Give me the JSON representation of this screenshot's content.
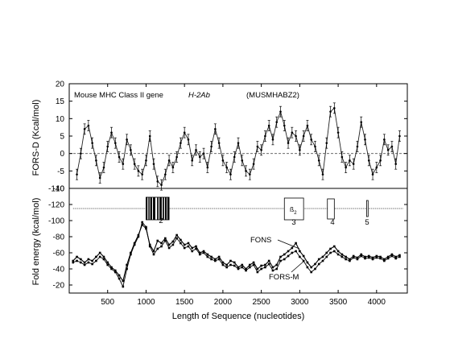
{
  "chart_data": [
    {
      "type": "line",
      "title": "Mouse MHC Class II gene",
      "gene": "H-2Ab",
      "accession": "(MUSMHABZ2)",
      "ylabel": "FORS-D (Kcal/mol)",
      "ylim": [
        -10,
        20
      ],
      "yticks": [
        -10,
        -5,
        0,
        5,
        10,
        15,
        20
      ],
      "xlim": [
        0,
        4400
      ],
      "reference_line": 0,
      "grid": false,
      "error_bars": true,
      "series": [
        {
          "x": [
            100,
            150,
            200,
            250,
            300,
            350,
            400,
            450,
            500,
            550,
            600,
            650,
            700,
            750,
            800,
            850,
            900,
            950,
            1000,
            1050,
            1100,
            1150,
            1200,
            1250,
            1300,
            1350,
            1400,
            1450,
            1500,
            1550,
            1600,
            1650,
            1700,
            1750,
            1800,
            1850,
            1900,
            1950,
            2000,
            2050,
            2100,
            2150,
            2200,
            2250,
            2300,
            2350,
            2400,
            2450,
            2500,
            2550,
            2600,
            2650,
            2700,
            2750,
            2800,
            2850,
            2900,
            2950,
            3000,
            3050,
            3100,
            3150,
            3200,
            3250,
            3300,
            3350,
            3400,
            3450,
            3500,
            3550,
            3600,
            3650,
            3700,
            3750,
            3800,
            3850,
            3900,
            3950,
            4000,
            4050,
            4100,
            4150,
            4200,
            4250,
            4300
          ],
          "values": [
            -6,
            0,
            7,
            8,
            3,
            -2,
            -7,
            -4,
            2,
            6,
            3,
            -1,
            -3,
            4,
            1,
            -3,
            -5,
            -6,
            -2,
            5,
            -3,
            -8,
            -9,
            -6,
            -2,
            -4,
            -1,
            3,
            6,
            4,
            -2,
            1,
            -1,
            0,
            -4,
            2,
            7,
            3,
            -2,
            -4,
            -6,
            -1,
            3,
            -2,
            -5,
            -6,
            -3,
            2,
            1,
            5,
            8,
            4,
            9,
            12,
            8,
            3,
            6,
            5,
            1,
            5,
            8,
            4,
            2,
            -2,
            -6,
            3,
            12,
            13,
            6,
            -1,
            -4,
            -2,
            -3,
            2,
            9,
            4,
            -2,
            -6,
            -4,
            -2,
            4,
            1,
            2,
            -3,
            5
          ],
          "error": [
            1.5,
            1.5,
            1.5,
            1.5,
            1.5,
            1.5,
            1.5,
            1.5,
            1.5,
            1.5,
            1.5,
            1.5,
            1.5,
            1.5,
            1.5,
            1.5,
            1.5,
            1.5,
            1.5,
            1.5,
            1.5,
            1.5,
            1.5,
            1.5,
            1.5,
            1.5,
            1.5,
            1.5,
            1.5,
            1.5,
            1.5,
            1.5,
            1.5,
            1.5,
            1.5,
            1.5,
            1.5,
            1.5,
            1.5,
            1.5,
            1.5,
            1.5,
            1.5,
            1.5,
            1.5,
            1.5,
            1.5,
            1.5,
            1.5,
            1.5,
            1.5,
            1.5,
            1.5,
            1.5,
            1.5,
            1.5,
            1.5,
            1.5,
            1.5,
            1.5,
            1.5,
            1.5,
            1.5,
            1.5,
            1.5,
            1.5,
            1.5,
            1.5,
            1.5,
            1.5,
            1.5,
            1.5,
            1.5,
            1.5,
            1.5,
            1.5,
            1.5,
            1.5,
            1.5,
            1.5,
            1.5,
            1.5,
            1.5,
            1.5,
            1.5
          ]
        }
      ]
    },
    {
      "type": "line",
      "ylabel": "Fold energy (kcal/mol)",
      "xlabel": "Length of Sequence (nucleotides)",
      "ylim": [
        -10,
        -140
      ],
      "yticks": [
        -20,
        -40,
        -60,
        -80,
        -100,
        -120,
        -140
      ],
      "xlim": [
        0,
        4400
      ],
      "xticks": [
        500,
        1000,
        1500,
        2000,
        2500,
        3000,
        3500,
        4000
      ],
      "grid": false,
      "series": [
        {
          "name": "FONS",
          "x": [
            50,
            100,
            150,
            200,
            250,
            300,
            350,
            400,
            450,
            500,
            550,
            600,
            650,
            700,
            750,
            800,
            850,
            900,
            950,
            1000,
            1050,
            1100,
            1150,
            1200,
            1250,
            1300,
            1350,
            1400,
            1450,
            1500,
            1550,
            1600,
            1650,
            1700,
            1750,
            1800,
            1850,
            1900,
            1950,
            2000,
            2050,
            2100,
            2150,
            2200,
            2250,
            2300,
            2350,
            2400,
            2450,
            2500,
            2550,
            2600,
            2650,
            2700,
            2750,
            2800,
            2850,
            2900,
            2950,
            3000,
            3050,
            3100,
            3150,
            3200,
            3250,
            3300,
            3350,
            3400,
            3450,
            3500,
            3550,
            3600,
            3650,
            3700,
            3750,
            3800,
            3850,
            3900,
            3950,
            4000,
            4050,
            4100,
            4150,
            4200,
            4250,
            4300
          ],
          "values": [
            -50,
            -55,
            -52,
            -48,
            -52,
            -50,
            -55,
            -60,
            -55,
            -48,
            -42,
            -38,
            -32,
            -25,
            -45,
            -60,
            -72,
            -82,
            -95,
            -90,
            -70,
            -62,
            -75,
            -72,
            -78,
            -70,
            -74,
            -82,
            -76,
            -70,
            -72,
            -66,
            -68,
            -60,
            -62,
            -58,
            -55,
            -52,
            -55,
            -48,
            -45,
            -50,
            -48,
            -42,
            -45,
            -40,
            -45,
            -48,
            -40,
            -44,
            -45,
            -50,
            -42,
            -45,
            -55,
            -58,
            -62,
            -66,
            -72,
            -62,
            -56,
            -48,
            -42,
            -46,
            -52,
            -55,
            -60,
            -65,
            -68,
            -62,
            -58,
            -55,
            -52,
            -56,
            -54,
            -58,
            -55,
            -56,
            -54,
            -56,
            -55,
            -52,
            -55,
            -58,
            -55,
            -57
          ]
        },
        {
          "name": "FORS-M",
          "x": [
            50,
            100,
            150,
            200,
            250,
            300,
            350,
            400,
            450,
            500,
            550,
            600,
            650,
            700,
            750,
            800,
            850,
            900,
            950,
            1000,
            1050,
            1100,
            1150,
            1200,
            1250,
            1300,
            1350,
            1400,
            1450,
            1500,
            1550,
            1600,
            1650,
            1700,
            1750,
            1800,
            1850,
            1900,
            1950,
            2000,
            2050,
            2100,
            2150,
            2200,
            2250,
            2300,
            2350,
            2400,
            2450,
            2500,
            2550,
            2600,
            2650,
            2700,
            2750,
            2800,
            2850,
            2900,
            2950,
            3000,
            3050,
            3100,
            3150,
            3200,
            3250,
            3300,
            3350,
            3400,
            3450,
            3500,
            3550,
            3600,
            3650,
            3700,
            3750,
            3800,
            3850,
            3900,
            3950,
            4000,
            4050,
            4100,
            4150,
            4200,
            4250,
            4300
          ],
          "values": [
            -48,
            -50,
            -48,
            -45,
            -48,
            -46,
            -50,
            -55,
            -52,
            -45,
            -40,
            -36,
            -28,
            -18,
            -40,
            -58,
            -70,
            -80,
            -98,
            -92,
            -68,
            -58,
            -65,
            -68,
            -75,
            -66,
            -70,
            -78,
            -72,
            -66,
            -68,
            -62,
            -65,
            -58,
            -60,
            -55,
            -52,
            -50,
            -52,
            -45,
            -42,
            -45,
            -44,
            -40,
            -42,
            -38,
            -42,
            -45,
            -36,
            -40,
            -42,
            -46,
            -38,
            -40,
            -50,
            -52,
            -56,
            -60,
            -62,
            -55,
            -50,
            -42,
            -36,
            -40,
            -46,
            -50,
            -55,
            -60,
            -62,
            -58,
            -55,
            -52,
            -50,
            -54,
            -52,
            -56,
            -53,
            -54,
            -52,
            -54,
            -53,
            -50,
            -53,
            -56,
            -53,
            -55
          ]
        }
      ],
      "annotations": [
        {
          "label": "2",
          "exon_start": 1000,
          "exon_end": 1300,
          "style": "filled"
        },
        {
          "label": "ß",
          "subscript": "2",
          "exon_start": 2800,
          "exon_end": 3050,
          "style": "open"
        },
        {
          "label": "3",
          "exon_start": 2800,
          "exon_end": 3050
        },
        {
          "label": "4",
          "exon_start": 3360,
          "exon_end": 3450,
          "style": "open"
        },
        {
          "label": "5",
          "exon_start": 3870,
          "exon_end": 3890,
          "style": "open"
        }
      ],
      "gene_map": {
        "line_level": -115,
        "start": 50,
        "end": 4350
      }
    }
  ],
  "labels": {
    "title": "Mouse MHC Class II gene",
    "gene": "H-2Ab",
    "accession": "(MUSMHABZ2)",
    "fors_label": "FONS",
    "forsm_label": "FORS-M",
    "top_ylabel": "FORS-D (Kcal/mol)",
    "bottom_ylabel": "Fold energy (kcal/mol)",
    "xlabel": "Length of Sequence (nucleotides)",
    "exon2": "2",
    "exon3": "3",
    "exon4": "4",
    "exon5": "5",
    "beta": "ß",
    "beta_sub": "2"
  }
}
